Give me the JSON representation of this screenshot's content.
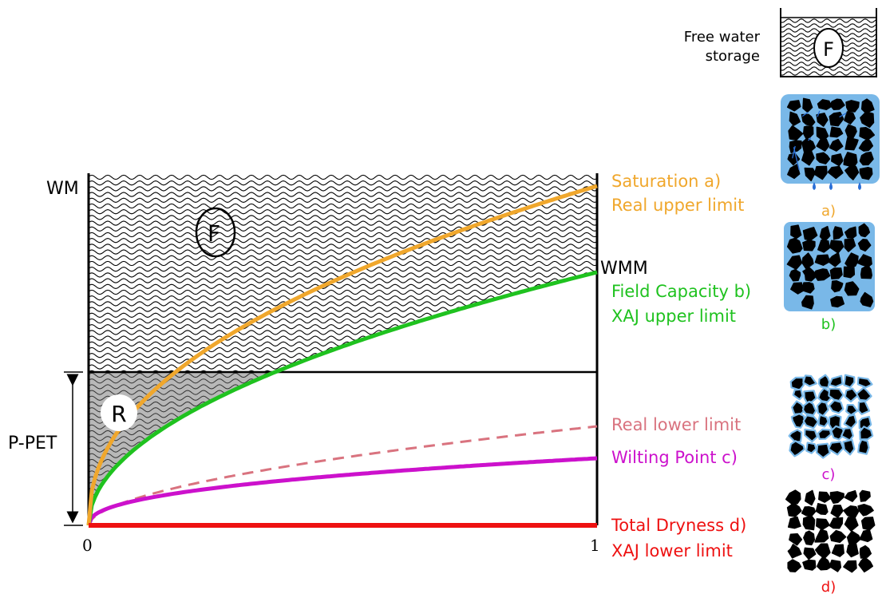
{
  "storage": {
    "free_water_label_line1": "Free water",
    "free_water_label_line2": "storage",
    "symbol": "F"
  },
  "axis": {
    "x_start": "0",
    "x_end": "1",
    "wm": "WM",
    "wmm": "WMM",
    "p_pet": "P-PET"
  },
  "zones": {
    "free_water_symbol": "F",
    "runoff_symbol": "R"
  },
  "curves": {
    "saturation": {
      "label_line1": "Saturation a)",
      "label_line2": "Real upper limit",
      "color": "#F0A72C"
    },
    "field_capacity": {
      "label_line1": "Field Capacity b)",
      "label_line2": "XAJ upper limit",
      "color": "#1FC21F"
    },
    "real_lower": {
      "label": "Real lower limit",
      "color": "#D9737F"
    },
    "wilting": {
      "label": "Wilting Point c)",
      "color": "#CC11CC"
    },
    "dryness": {
      "label_line1": "Total Dryness d)",
      "label_line2": "XAJ lower limit",
      "color": "#EE1111"
    }
  },
  "soil_states": {
    "a": "a)",
    "b": "b)",
    "c": "c)",
    "d": "d)",
    "water_color": "#79B8E8"
  }
}
